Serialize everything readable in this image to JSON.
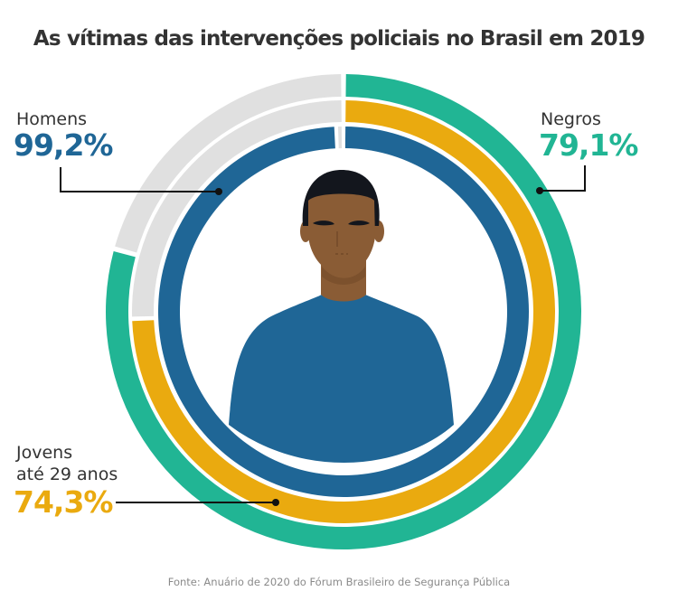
{
  "chart_data": {
    "type": "radial-bar",
    "title": "As vítimas das intervenções policiais no Brasil em 2019",
    "start_angle": "top",
    "direction": "clockwise",
    "max": 100,
    "background_color": "#e0e0e0",
    "series": [
      {
        "name": "Negros",
        "label": "Negros",
        "value": 79.1,
        "display": "79,1%",
        "color": "#21b594",
        "ring": "outer",
        "label_position": "top-right"
      },
      {
        "name": "Jovens até 29 anos",
        "label": [
          "Jovens",
          "até 29 anos"
        ],
        "value": 74.3,
        "display": "74,3%",
        "color": "#eaaa0f",
        "ring": "middle",
        "label_position": "bottom-left"
      },
      {
        "name": "Homens",
        "label": "Homens",
        "value": 99.2,
        "display": "99,2%",
        "color": "#1f6696",
        "ring": "inner",
        "label_position": "top-left"
      }
    ],
    "source": "Fonte: Anuário de 2020 do Fórum Brasileiro de Segurança Pública"
  },
  "illustration": {
    "subject": "person-avatar",
    "colors": {
      "skin": "#8a5c35",
      "hair": "#13161d",
      "shirt": "#1f6696",
      "shadow": "#6e4626"
    }
  },
  "colors": {
    "text": "#333333",
    "source_text": "#8a8a8a",
    "leader_line": "#111111"
  }
}
